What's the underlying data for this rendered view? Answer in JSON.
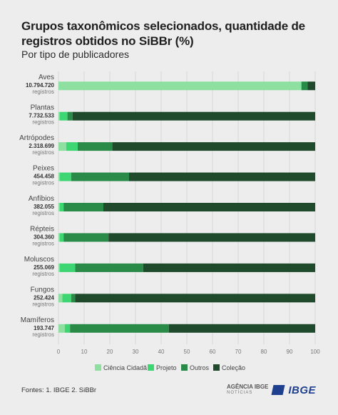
{
  "header": {
    "title": "Grupos taxonômicos selecionados, quantidade de registros obtidos no SiBBr (%)",
    "subtitle": "Por tipo de publicadores"
  },
  "footer": {
    "source": "Fontes: 1. IBGE 2. SiBBr"
  },
  "logos": {
    "agency": "AGÊNCIA IBGE",
    "agency_sub": "NOTÍCIAS",
    "ibge": "IBGE"
  },
  "chart_data": {
    "type": "bar",
    "orientation": "horizontal",
    "stacked": true,
    "categories": [
      "Aves",
      "Plantas",
      "Artrópodes",
      "Peixes",
      "Anfíbios",
      "Répteis",
      "Moluscos",
      "Fungos",
      "Mamíferos"
    ],
    "counts": [
      "10.794.720",
      "7.732.533",
      "2.318.699",
      "454.458",
      "382.055",
      "304.360",
      "255.069",
      "252.424",
      "193.747"
    ],
    "count_unit": "registros",
    "series": [
      {
        "name": "Ciência Cidadã",
        "color": "#8ee0a0",
        "values": [
          94.5,
          0.5,
          3.0,
          0.5,
          0.5,
          0.5,
          0.5,
          1.5,
          2.5
        ]
      },
      {
        "name": "Projeto",
        "color": "#3ed673",
        "values": [
          0.2,
          3.0,
          4.5,
          4.5,
          1.5,
          1.5,
          6.0,
          3.5,
          2.0
        ]
      },
      {
        "name": "Outros",
        "color": "#2a8a48",
        "values": [
          2.3,
          2.0,
          13.5,
          22.5,
          15.5,
          17.5,
          26.5,
          1.5,
          38.5
        ]
      },
      {
        "name": "Coleção",
        "color": "#1f4a2b",
        "values": [
          3.0,
          94.5,
          79.0,
          72.5,
          82.5,
          80.5,
          67.0,
          93.5,
          57.0
        ]
      }
    ],
    "xlim": [
      0,
      100
    ],
    "xticks": [
      0,
      10,
      20,
      30,
      40,
      50,
      60,
      70,
      80,
      90,
      100
    ],
    "legend_position": "bottom",
    "grid": true
  }
}
